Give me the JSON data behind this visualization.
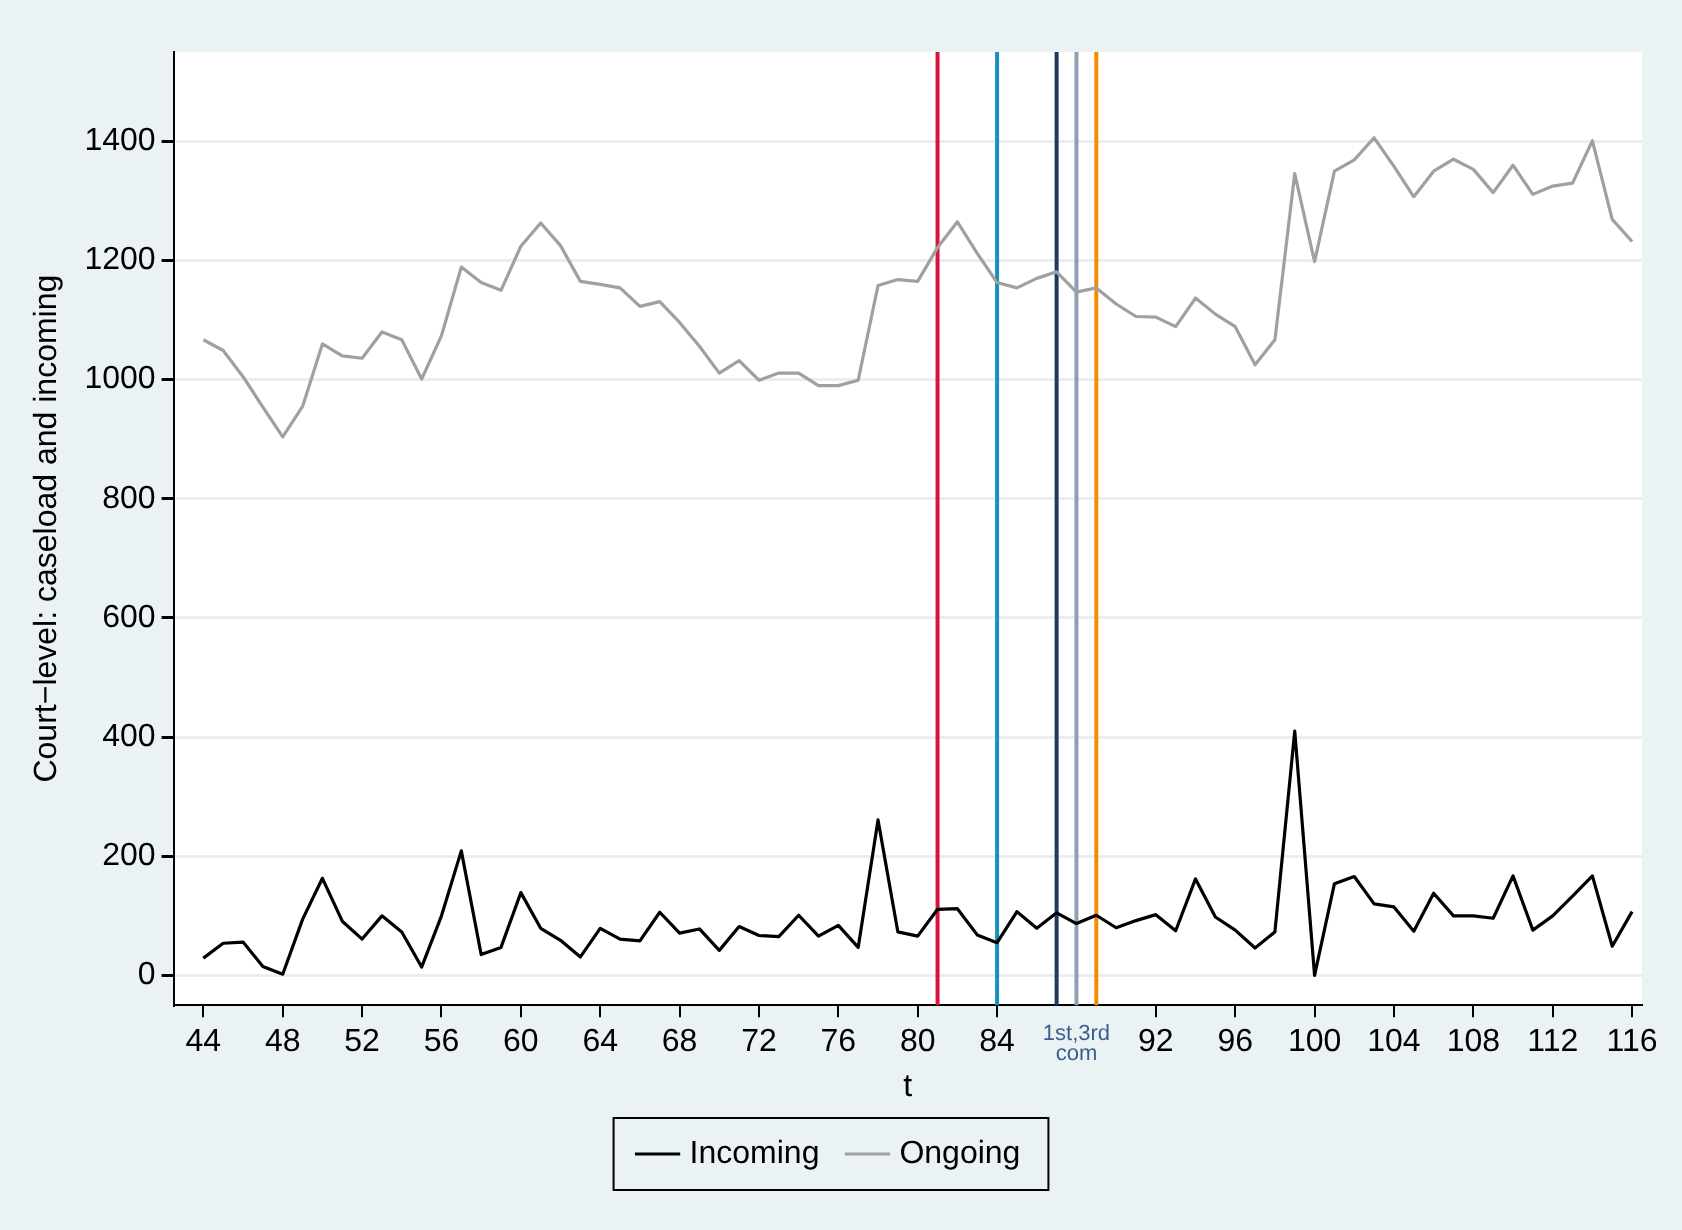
{
  "chart_data": {
    "type": "line",
    "xlabel": "t",
    "ylabel": "Court−level: caseload and incoming",
    "x": [
      44,
      45,
      46,
      47,
      48,
      49,
      50,
      51,
      52,
      53,
      54,
      55,
      56,
      57,
      58,
      59,
      60,
      61,
      62,
      63,
      64,
      65,
      66,
      67,
      68,
      69,
      70,
      71,
      72,
      73,
      74,
      75,
      76,
      77,
      78,
      79,
      80,
      81,
      82,
      83,
      84,
      85,
      86,
      87,
      88,
      89,
      90,
      91,
      92,
      93,
      94,
      95,
      96,
      97,
      98,
      99,
      100,
      101,
      102,
      103,
      104,
      105,
      106,
      107,
      108,
      109,
      110,
      111,
      112,
      113,
      114,
      115,
      116
    ],
    "series": [
      {
        "name": "Incoming",
        "color": "#000000",
        "values": [
          29,
          54,
          56,
          15,
          2,
          94,
          163,
          91,
          61,
          100,
          73,
          14,
          100,
          209,
          35,
          47,
          139,
          79,
          59,
          31,
          79,
          61,
          58,
          106,
          71,
          78,
          42,
          82,
          67,
          65,
          101,
          66,
          84,
          47,
          261,
          73,
          66,
          111,
          112,
          68,
          55,
          107,
          79,
          105,
          87,
          101,
          80,
          92,
          102,
          75,
          162,
          98,
          76,
          46,
          73,
          410,
          0,
          154,
          166,
          120,
          115,
          74,
          138,
          100,
          100,
          96,
          167,
          76,
          100,
          133,
          167,
          49,
          107
        ]
      },
      {
        "name": "Ongoing",
        "color": "#a0a0a0",
        "values": [
          1067,
          1049,
          1005,
          954,
          904,
          955,
          1060,
          1040,
          1036,
          1080,
          1067,
          1001,
          1074,
          1189,
          1163,
          1150,
          1224,
          1263,
          1225,
          1165,
          1160,
          1154,
          1123,
          1131,
          1096,
          1056,
          1011,
          1032,
          999,
          1011,
          1011,
          990,
          990,
          999,
          1158,
          1168,
          1165,
          1222,
          1265,
          1212,
          1163,
          1154,
          1170,
          1181,
          1147,
          1154,
          1127,
          1106,
          1105,
          1089,
          1137,
          1110,
          1089,
          1025,
          1067,
          1346,
          1198,
          1350,
          1369,
          1406,
          1358,
          1307,
          1350,
          1370,
          1353,
          1314,
          1360,
          1311,
          1325,
          1330,
          1401,
          1269,
          1232
        ]
      }
    ],
    "xlim": [
      42.5,
      116.5
    ],
    "xticks": [
      44,
      48,
      52,
      56,
      60,
      64,
      68,
      72,
      76,
      80,
      84,
      92,
      96,
      100,
      104,
      108,
      112,
      116
    ],
    "ylim": [
      -50,
      1550
    ],
    "yticks": [
      0,
      200,
      400,
      600,
      800,
      1000,
      1200,
      1400
    ],
    "ref_lines": [
      {
        "axis": "x",
        "value": 81,
        "color": "#d7143c"
      },
      {
        "axis": "x",
        "value": 84,
        "color": "#1a8fc2"
      },
      {
        "axis": "x",
        "value": 87,
        "color": "#1f3a5f"
      },
      {
        "axis": "x",
        "value": 88,
        "color": "#8ea0b8",
        "label": "1st,3rd com"
      },
      {
        "axis": "x",
        "value": 89,
        "color": "#f28c00"
      }
    ],
    "grid": "y",
    "legend": "bottom",
    "marker": "none",
    "line_style": "solid"
  }
}
